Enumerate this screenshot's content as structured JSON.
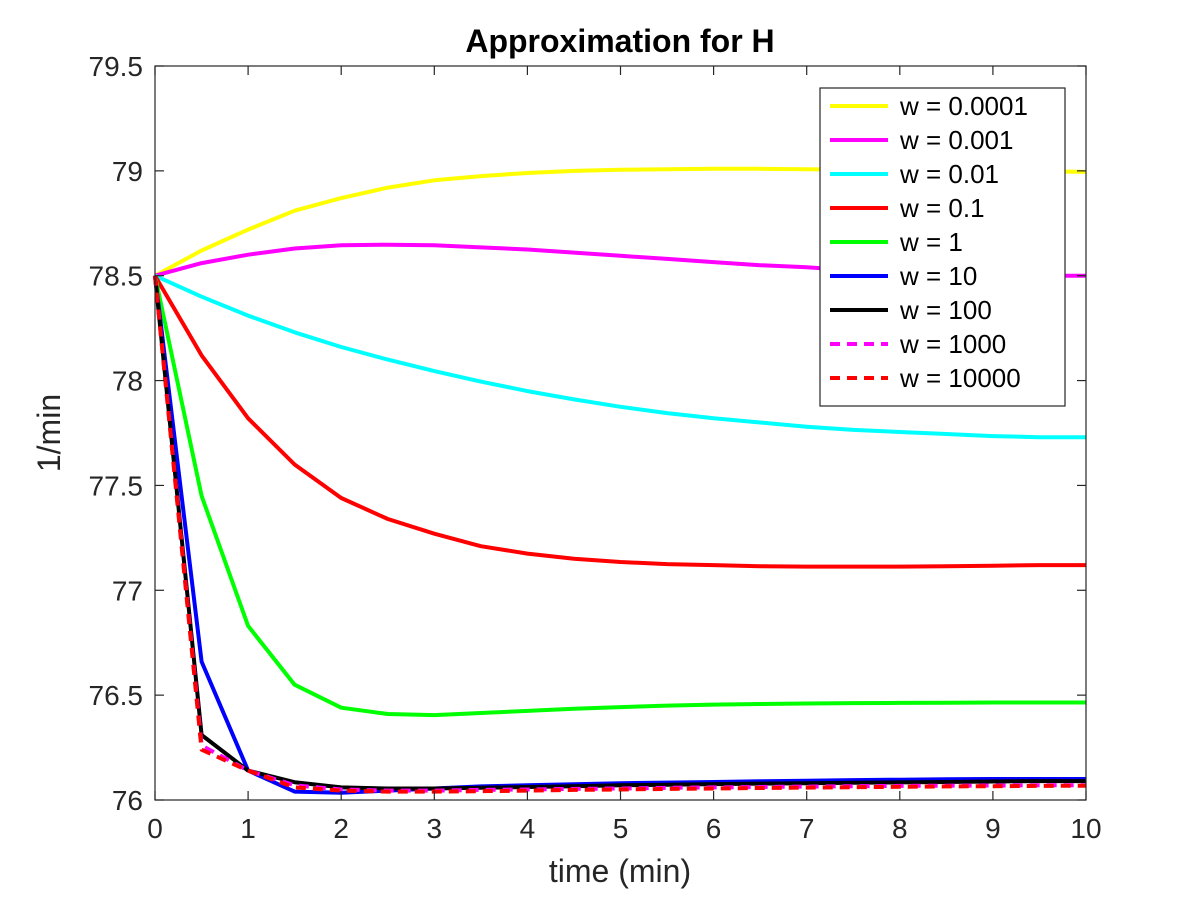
{
  "chart_data": {
    "type": "line",
    "title": "Approximation for H",
    "xlabel": "time (min)",
    "ylabel": "1/min",
    "xlim": [
      0,
      10
    ],
    "ylim": [
      76,
      79.5
    ],
    "xticks": [
      "0",
      "1",
      "2",
      "3",
      "4",
      "5",
      "6",
      "7",
      "8",
      "9",
      "10"
    ],
    "yticks": [
      "76",
      "76.5",
      "77",
      "77.5",
      "78",
      "78.5",
      "79",
      "79.5"
    ],
    "grid": false,
    "legend_position": "top-right",
    "x": [
      0,
      0.5,
      1,
      1.5,
      2,
      2.5,
      3,
      3.5,
      4,
      4.5,
      5,
      5.5,
      6,
      6.5,
      7,
      7.5,
      8,
      8.5,
      9,
      9.5,
      10
    ],
    "series": [
      {
        "name": "w = 0.0001",
        "color": "#ffff00",
        "dash": "solid",
        "values": [
          78.5,
          78.62,
          78.72,
          78.81,
          78.87,
          78.92,
          78.955,
          78.975,
          78.99,
          79.0,
          79.005,
          79.008,
          79.01,
          79.01,
          79.008,
          79.006,
          79.004,
          79.002,
          79.0,
          78.998,
          78.995
        ]
      },
      {
        "name": "w = 0.001",
        "color": "#ff00ff",
        "dash": "solid",
        "values": [
          78.5,
          78.56,
          78.6,
          78.63,
          78.645,
          78.648,
          78.645,
          78.635,
          78.625,
          78.61,
          78.595,
          78.58,
          78.565,
          78.55,
          78.54,
          78.525,
          78.515,
          78.505,
          78.5,
          78.5,
          78.5
        ]
      },
      {
        "name": "w = 0.01",
        "color": "#00ffff",
        "dash": "solid",
        "values": [
          78.5,
          78.4,
          78.31,
          78.23,
          78.16,
          78.1,
          78.045,
          77.995,
          77.95,
          77.91,
          77.875,
          77.845,
          77.82,
          77.8,
          77.78,
          77.765,
          77.755,
          77.745,
          77.735,
          77.73,
          77.73
        ]
      },
      {
        "name": "w = 0.1",
        "color": "#ff0000",
        "dash": "solid",
        "values": [
          78.5,
          78.12,
          77.82,
          77.6,
          77.44,
          77.34,
          77.27,
          77.21,
          77.175,
          77.15,
          77.135,
          77.125,
          77.12,
          77.115,
          77.113,
          77.113,
          77.113,
          77.115,
          77.117,
          77.12,
          77.12
        ]
      },
      {
        "name": "w = 1",
        "color": "#00ff00",
        "dash": "solid",
        "values": [
          78.5,
          77.45,
          76.83,
          76.55,
          76.44,
          76.41,
          76.405,
          76.415,
          76.425,
          76.435,
          76.443,
          76.45,
          76.455,
          76.458,
          76.46,
          76.462,
          76.463,
          76.464,
          76.465,
          76.465,
          76.465
        ]
      },
      {
        "name": "w = 10",
        "color": "#0000ff",
        "dash": "solid",
        "values": [
          78.5,
          76.66,
          76.14,
          76.04,
          76.035,
          76.045,
          76.055,
          76.065,
          76.07,
          76.075,
          76.08,
          76.083,
          76.086,
          76.089,
          76.092,
          76.095,
          76.097,
          76.099,
          76.1,
          76.1,
          76.1
        ]
      },
      {
        "name": "w = 100",
        "color": "#000000",
        "dash": "solid",
        "values": [
          78.5,
          76.31,
          76.14,
          76.085,
          76.06,
          76.055,
          76.055,
          76.058,
          76.062,
          76.066,
          76.07,
          76.073,
          76.076,
          76.078,
          76.08,
          76.082,
          76.084,
          76.086,
          76.088,
          76.09,
          76.09
        ]
      },
      {
        "name": "w = 1000",
        "color": "#ff00ff",
        "dash": "dashed",
        "values": [
          78.5,
          76.26,
          76.14,
          76.07,
          76.05,
          76.045,
          76.045,
          76.048,
          76.05,
          76.053,
          76.055,
          76.058,
          76.06,
          76.062,
          76.064,
          76.066,
          76.067,
          76.068,
          76.069,
          76.07,
          76.07
        ]
      },
      {
        "name": "w = 10000",
        "color": "#ff0000",
        "dash": "dashed",
        "values": [
          78.5,
          76.24,
          76.14,
          76.06,
          76.045,
          76.04,
          76.04,
          76.042,
          76.045,
          76.048,
          76.05,
          76.053,
          76.055,
          76.057,
          76.059,
          76.061,
          76.063,
          76.065,
          76.066,
          76.067,
          76.068
        ]
      }
    ]
  }
}
